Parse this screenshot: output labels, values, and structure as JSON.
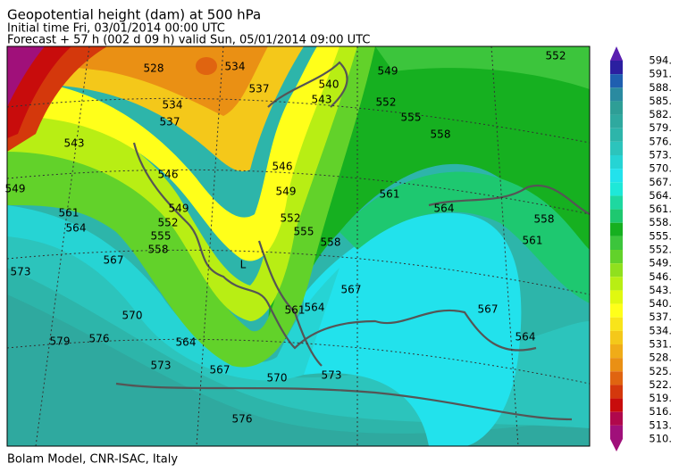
{
  "header": {
    "title": "Geopotential height (dam) at 500 hPa",
    "initial_time": "Initial time  Fri, 03/01/2014  00:00 UTC",
    "forecast": "Forecast  +  57 h  (002 d 09 h)  valid Sun, 05/01/2014 09:00 UTC"
  },
  "contour_labels": [
    "528",
    "534",
    "537",
    "540",
    "543",
    "549",
    "552",
    "552",
    "555",
    "558",
    "546",
    "549",
    "552",
    "555",
    "558",
    "561",
    "564",
    "558",
    "561",
    "567",
    "564",
    "561",
    "564",
    "567",
    "546",
    "549",
    "552",
    "555",
    "558",
    "561",
    "564",
    "567",
    "570",
    "573",
    "576",
    "579",
    "573",
    "564",
    "567",
    "570",
    "573",
    "576",
    "543",
    "549",
    "534",
    "537"
  ],
  "low_label": "L",
  "colorbar": {
    "levels": [
      {
        "value": 594,
        "label": "594."
      },
      {
        "value": 591,
        "label": "591."
      },
      {
        "value": 588,
        "label": "588."
      },
      {
        "value": 585,
        "label": "585."
      },
      {
        "value": 582,
        "label": "582."
      },
      {
        "value": 579,
        "label": "579."
      },
      {
        "value": 576,
        "label": "576."
      },
      {
        "value": 573,
        "label": "573."
      },
      {
        "value": 570,
        "label": "570."
      },
      {
        "value": 567,
        "label": "567."
      },
      {
        "value": 564,
        "label": "564."
      },
      {
        "value": 561,
        "label": "561."
      },
      {
        "value": 558,
        "label": "558."
      },
      {
        "value": 555,
        "label": "555."
      },
      {
        "value": 552,
        "label": "552."
      },
      {
        "value": 549,
        "label": "549."
      },
      {
        "value": 546,
        "label": "546."
      },
      {
        "value": 543,
        "label": "543."
      },
      {
        "value": 540,
        "label": "540."
      },
      {
        "value": 537,
        "label": "537."
      },
      {
        "value": 534,
        "label": "534."
      },
      {
        "value": 531,
        "label": "531."
      },
      {
        "value": 528,
        "label": "528."
      },
      {
        "value": 525,
        "label": "525."
      },
      {
        "value": 522,
        "label": "522."
      },
      {
        "value": 519,
        "label": "519."
      },
      {
        "value": 516,
        "label": "516."
      },
      {
        "value": 513,
        "label": "513."
      },
      {
        "value": 510,
        "label": "510."
      }
    ],
    "colors": [
      "#2b1fa0",
      "#1f5fb0",
      "#2a8aa0",
      "#2e9e96",
      "#2fa99f",
      "#2db5aa",
      "#2cc4bc",
      "#26d4d4",
      "#22e2ec",
      "#1ee8d8",
      "#1ed8a0",
      "#1ec870",
      "#16b020",
      "#3cc53c",
      "#62d22a",
      "#90e01e",
      "#b8ee14",
      "#e0f810",
      "#ffff1a",
      "#f8e41a",
      "#f4c81a",
      "#f0ac18",
      "#ea9014",
      "#e06410",
      "#d4380c",
      "#c80c0c",
      "#b0084c",
      "#a0107a"
    ]
  },
  "footer": "Bolam Model, CNR-ISAC, Italy"
}
